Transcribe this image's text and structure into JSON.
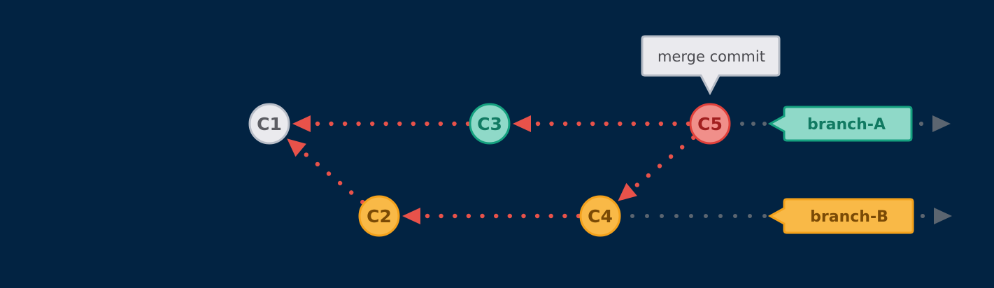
{
  "colors": {
    "background": "#022342",
    "edge": "#e8524a",
    "pointer": "#5b6570",
    "teal": "#8fd9c8",
    "teal_text": "#117a62",
    "orange": "#f9b947",
    "orange_text": "#7a4a06",
    "red": "#f08f8a",
    "red_text": "#a11f1f",
    "gray": "#eaeaee",
    "gray_text": "#5c5d63"
  },
  "commits": [
    {
      "id": "c1",
      "label": "C1",
      "style": "gray"
    },
    {
      "id": "c2",
      "label": "C2",
      "style": "orange"
    },
    {
      "id": "c3",
      "label": "C3",
      "style": "teal"
    },
    {
      "id": "c4",
      "label": "C4",
      "style": "orange"
    },
    {
      "id": "c5",
      "label": "C5",
      "style": "red"
    }
  ],
  "edges": [
    {
      "from": "c3",
      "to": "c1"
    },
    {
      "from": "c5",
      "to": "c3"
    },
    {
      "from": "c2",
      "to": "c1"
    },
    {
      "from": "c4",
      "to": "c2"
    },
    {
      "from": "c5",
      "to": "c4"
    }
  ],
  "branches": [
    {
      "id": "branch-a",
      "label": "branch-A",
      "target": "c5",
      "style": "teal"
    },
    {
      "id": "branch-b",
      "label": "branch-B",
      "target": "c4",
      "style": "orange"
    }
  ],
  "callout": {
    "text": "merge commit",
    "target": "c5",
    "icon": "speech-bubble-icon"
  },
  "icons": {
    "arrowhead": "arrowhead-icon",
    "pointer": "play-triangle-icon"
  }
}
